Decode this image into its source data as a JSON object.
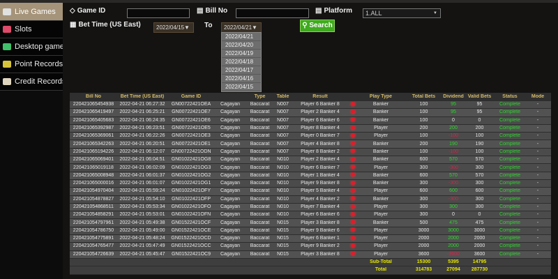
{
  "sidebar": {
    "items": [
      {
        "label": "Live Games",
        "active": true,
        "icon": "cards-icon"
      },
      {
        "label": "Slots",
        "icon": "slot-machine-icon"
      },
      {
        "label": "Desktop games",
        "icon": "gem-icon"
      },
      {
        "label": "Point Records",
        "icon": "diamond-icon"
      },
      {
        "label": "Credit Records",
        "icon": "document-icon"
      }
    ]
  },
  "filters": {
    "game_id_label": "Game ID",
    "game_id_value": "",
    "bill_no_label": "Bill No",
    "bill_no_value": "",
    "platform_label": "Platform",
    "platform_value": "1.ALL",
    "bet_time_label": "Bet Time (US East)",
    "from_date": "2022/04/15",
    "to_label": "To",
    "to_date": "2022/04/21",
    "search_label": "Search",
    "date_options": [
      "2022/04/21",
      "2022/04/20",
      "2022/04/19",
      "2022/04/18",
      "2022/04/17",
      "2022/04/16",
      "2022/04/15"
    ]
  },
  "table": {
    "headers": [
      "Bill No",
      "Bet Time (US East)",
      "Game ID",
      "",
      "Type",
      "Table",
      "Result",
      "",
      "Play Type",
      "Total Bets",
      "Dividend",
      "Valid Bets",
      "Status",
      "Mode"
    ],
    "rows": [
      [
        "220421065454938",
        "2022-04-21 06:27:32",
        "GN00722421OEA",
        "Cagayan",
        "Baccarat",
        "N007",
        "Player 6 Banker 8",
        "Banker",
        "100",
        "95",
        "95",
        "Complete",
        "-"
      ],
      [
        "220421065419497",
        "2022-04-21 06:25:21",
        "GN00722421OE7",
        "Cagayan",
        "Baccarat",
        "N007",
        "Player 2 Banker 4",
        "Banker",
        "100",
        "95",
        "95",
        "Complete",
        "-"
      ],
      [
        "220421065405683",
        "2022-04-21 06:24:35",
        "GN00722421OE6",
        "Cagayan",
        "Baccarat",
        "N007",
        "Player 6 Banker 6",
        "Banker",
        "100",
        "0",
        "0",
        "Complete",
        "-"
      ],
      [
        "220421065392987",
        "2022-04-21 06:23:51",
        "GN00722421OE5",
        "Cagayan",
        "Baccarat",
        "N007",
        "Player 8 Banker 4",
        "Player",
        "200",
        "200",
        "200",
        "Complete",
        "-"
      ],
      [
        "220421065369061",
        "2022-04-21 06:22:26",
        "GN00722421OE3",
        "Cagayan",
        "Baccarat",
        "N007",
        "Player 0 Banker 7",
        "Player",
        "100",
        "-100",
        "100",
        "Complete",
        "-"
      ],
      [
        "220421065342263",
        "2022-04-21 06:20:51",
        "GN00722421OE1",
        "Cagayan",
        "Baccarat",
        "N007",
        "Player 4 Banker 8",
        "Banker",
        "200",
        "190",
        "190",
        "Complete",
        "-"
      ],
      [
        "220421065194226",
        "2022-04-21 06:12:07",
        "GN00722421ODN",
        "Cagayan",
        "Baccarat",
        "N007",
        "Player 8 Banker 2",
        "Banker",
        "100",
        "-100",
        "100",
        "Complete",
        "-"
      ],
      [
        "220421065069401",
        "2022-04-21 06:04:51",
        "GN01022421OG8",
        "Cagayan",
        "Baccarat",
        "N010",
        "Player 2 Banker 4",
        "Banker",
        "600",
        "570",
        "570",
        "Complete",
        "-"
      ],
      [
        "220421065019118",
        "2022-04-21 06:02:09",
        "GN01022421OG3",
        "Cagayan",
        "Baccarat",
        "N010",
        "Player 6 Banker 7",
        "Player",
        "300",
        "-300",
        "300",
        "Complete",
        "-"
      ],
      [
        "220421065008948",
        "2022-04-21 06:01:37",
        "GN01022421OG2",
        "Cagayan",
        "Baccarat",
        "N010",
        "Player 1 Banker 4",
        "Banker",
        "600",
        "570",
        "570",
        "Complete",
        "-"
      ],
      [
        "220421065000016",
        "2022-04-21 06:01:07",
        "GN01022421OG1",
        "Cagayan",
        "Baccarat",
        "N010",
        "Player 9 Banker 8",
        "Banker",
        "300",
        "-300",
        "300",
        "Complete",
        "-"
      ],
      [
        "220421054970404",
        "2022-04-21 05:59:24",
        "GN01022421OFY",
        "Cagayan",
        "Baccarat",
        "N010",
        "Player 5 Banker 4",
        "Player",
        "600",
        "600",
        "600",
        "Complete",
        "-"
      ],
      [
        "220421054878827",
        "2022-04-21 05:54:10",
        "GN01022421OFP",
        "Cagayan",
        "Baccarat",
        "N010",
        "Player 4 Banker 2",
        "Banker",
        "300",
        "-300",
        "300",
        "Complete",
        "-"
      ],
      [
        "220421054868511",
        "2022-04-21 05:53:34",
        "GN01022421OFO",
        "Cagayan",
        "Baccarat",
        "N010",
        "Player 7 Banker 4",
        "Player",
        "300",
        "300",
        "300",
        "Complete",
        "-"
      ],
      [
        "220421054858291",
        "2022-04-21 05:53:01",
        "GN01022421OFN",
        "Cagayan",
        "Baccarat",
        "N010",
        "Player 6 Banker 6",
        "Player",
        "300",
        "0",
        "0",
        "Complete",
        "-"
      ],
      [
        "220421054797961",
        "2022-04-21 05:49:38",
        "GN01522421OCF",
        "Cagayan",
        "Baccarat",
        "N015",
        "Player 3 Banker 8",
        "Banker",
        "500",
        "475",
        "475",
        "Complete",
        "-"
      ],
      [
        "220421054786750",
        "2022-04-21 05:49:00",
        "GN01522421OCE",
        "Cagayan",
        "Baccarat",
        "N015",
        "Player 9 Banker 6",
        "Player",
        "3000",
        "3000",
        "3000",
        "Complete",
        "-"
      ],
      [
        "220421054775891",
        "2022-04-21 05:48:24",
        "GN01522421OCD",
        "Cagayan",
        "Baccarat",
        "N015",
        "Player 6 Banker 1",
        "Player",
        "2000",
        "2000",
        "2000",
        "Complete",
        "-"
      ],
      [
        "220421054765477",
        "2022-04-21 05:47:49",
        "GN01522421OCC",
        "Cagayan",
        "Baccarat",
        "N015",
        "Player 9 Banker 2",
        "Player",
        "2000",
        "2000",
        "2000",
        "Complete",
        "-"
      ],
      [
        "220421054726639",
        "2022-04-21 05:45:47",
        "GN01522421OC9",
        "Cagayan",
        "Baccarat",
        "N015",
        "Player 3 Banker 8",
        "Player",
        "3600",
        "-3600",
        "3600",
        "Complete",
        "-"
      ]
    ],
    "subtotal": {
      "label": "Sub-Total",
      "total_bets": "15300",
      "dividend": "5395",
      "valid_bets": "14795"
    },
    "total": {
      "label": "Total",
      "total_bets": "314783",
      "dividend": "27094",
      "valid_bets": "287730"
    }
  },
  "colors": {
    "positive": "#2fd12f",
    "negative": "#d8234a",
    "header": "#d4bb6a",
    "result_dot": "#e21b2a"
  }
}
